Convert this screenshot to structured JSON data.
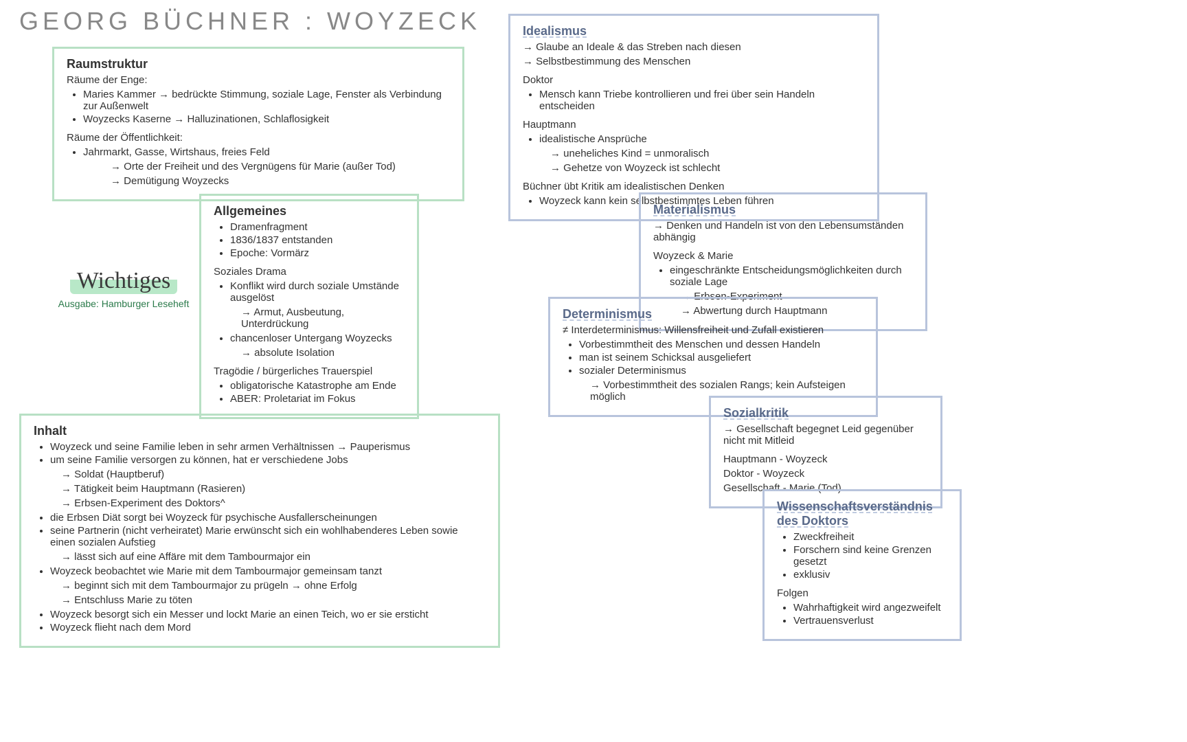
{
  "title": "GEORG BÜCHNER : WOYZECK",
  "wichtiges": {
    "script": "Wichtiges",
    "edition": "Ausgabe: Hamburger Leseheft"
  },
  "raum": {
    "heading": "Raumstruktur",
    "sub1": "Räume der Enge:",
    "b1": "Maries Kammer → bedrückte Stimmung, soziale Lage, Fenster als Verbindung zur Außenwelt",
    "b2": "Woyzecks Kaserne → Halluzinationen, Schlaflosigkeit",
    "sub2": "Räume der Öffentlichkeit:",
    "b3": "Jahrmarkt, Gasse, Wirtshaus, freies Feld",
    "a1": "→ Orte der Freiheit und des Vergnügens für Marie (außer Tod)",
    "a2": "→ Demütigung Woyzecks"
  },
  "allg": {
    "heading": "Allgemeines",
    "b1": "Dramenfragment",
    "b2": "1836/1837 entstanden",
    "b3": "Epoche: Vormärz",
    "sub1": "Soziales Drama",
    "b4": "Konflikt wird durch soziale Umstände ausgelöst",
    "a1": "→ Armut, Ausbeutung, Unterdrückung",
    "b5": "chancenloser Untergang Woyzecks",
    "a2": "→ absolute Isolation",
    "sub2": "Tragödie / bürgerliches Trauerspiel",
    "b6": "obligatorische Katastrophe am Ende",
    "b7": "ABER: Proletariat im Fokus"
  },
  "inhalt": {
    "heading": "Inhalt",
    "b1": "Woyzeck und seine Familie leben in sehr armen Verhältnissen → Pauperismus",
    "b2": "um seine Familie versorgen zu können, hat er verschiedene Jobs",
    "a1": "→ Soldat (Hauptberuf)",
    "a2": "→ Tätigkeit beim Hauptmann (Rasieren)",
    "a3": "→ Erbsen-Experiment des Doktors^",
    "b3": "die Erbsen Diät sorgt bei Woyzeck für psychische Ausfallerscheinungen",
    "b4": "seine Partnerin (nicht verheiratet) Marie erwünscht sich ein wohlhabenderes Leben sowie einen sozialen Aufstieg",
    "a4": "→ lässt sich auf eine Affäre mit dem Tambourmajor ein",
    "b5": "Woyzeck beobachtet wie Marie mit dem Tambourmajor gemeinsam tanzt",
    "a5": "→ beginnt sich mit dem Tambourmajor zu prügeln → ohne Erfolg",
    "a6": "→ Entschluss Marie zu töten",
    "b6": "Woyzeck besorgt sich ein Messer und lockt Marie an einen Teich, wo er sie ersticht",
    "b7": "Woyzeck flieht nach dem Mord"
  },
  "ideal": {
    "heading": "Idealismus",
    "l1": "→ Glaube an Ideale & das Streben nach diesen",
    "l2": "→ Selbstbestimmung des Menschen",
    "sub1": "Doktor",
    "b1": "Mensch kann Triebe kontrollieren und frei über sein Handeln entscheiden",
    "sub2": "Hauptmann",
    "b2": "idealistische Ansprüche",
    "a1": "→ uneheliches Kind = unmoralisch",
    "a2": "→ Gehetze von Woyzeck ist schlecht",
    "sub3": "Büchner übt Kritik am idealistischen Denken",
    "b3": "Woyzeck kann kein selbstbestimmtes Leben führen"
  },
  "mater": {
    "heading": "Materialismus",
    "l1": "→ Denken und Handeln ist von den Lebensumständen abhängig",
    "sub1": "Woyzeck & Marie",
    "b1": "eingeschränkte Entscheidungsmöglichkeiten durch soziale Lage",
    "a1": "→ Erbsen-Experiment",
    "a2": "→ Abwertung durch Hauptmann"
  },
  "deter": {
    "heading": "Determinismus",
    "l1": "≠ Interdeterminismus: Willensfreiheit und Zufall existieren",
    "b1": "Vorbestimmtheit des Menschen und dessen Handeln",
    "b2": "man ist seinem Schicksal ausgeliefert",
    "b3": "sozialer Determinismus",
    "a1": "→ Vorbestimmtheit des sozialen Rangs; kein Aufsteigen möglich"
  },
  "sozial": {
    "heading": "Sozialkritik",
    "l1": "→ Gesellschaft begegnet Leid gegenüber nicht mit Mitleid",
    "p1": "Hauptmann - Woyzeck",
    "p2": "Doktor - Woyzeck",
    "p3": "Gesellschaft - Marie (Tod)"
  },
  "wissen": {
    "heading": "Wissenschaftsverständnis des Doktors",
    "b1": "Zweckfreiheit",
    "b2": "Forschern sind keine Grenzen gesetzt",
    "b3": "exklusiv",
    "sub1": "Folgen",
    "b4": "Wahrhaftigkeit wird angezweifelt",
    "b5": "Vertrauensverlust"
  }
}
